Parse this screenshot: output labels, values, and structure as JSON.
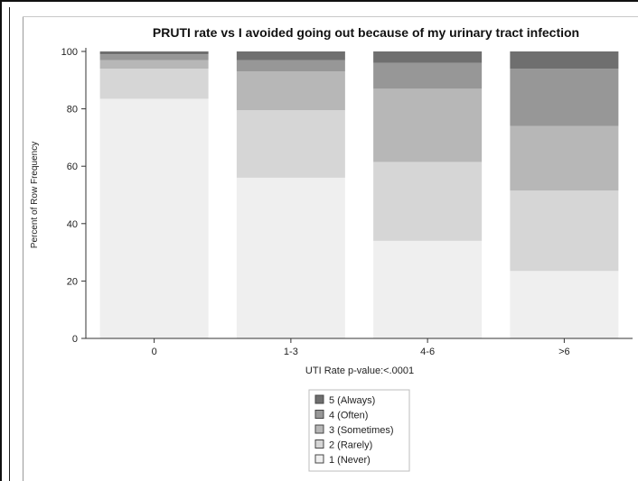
{
  "chart_data": {
    "type": "bar",
    "stacked": true,
    "title": "PRUTI rate vs I avoided going out because of my urinary tract infection",
    "xlabel": "UTI Rate p-value:<.0001",
    "ylabel": "Percent of Row Frequency",
    "ylim": [
      0,
      100
    ],
    "yticks": [
      0,
      20,
      40,
      60,
      80,
      100
    ],
    "categories": [
      "0",
      "1-3",
      "4-6",
      ">6"
    ],
    "series": [
      {
        "name": "1 (Never)",
        "color": "#efefef",
        "values": [
          83.5,
          56,
          34,
          23.5
        ]
      },
      {
        "name": "2 (Rarely)",
        "color": "#d6d6d6",
        "values": [
          10.5,
          23.5,
          27.5,
          28
        ]
      },
      {
        "name": "3 (Sometimes)",
        "color": "#b7b7b7",
        "values": [
          3,
          13.5,
          25.5,
          22.5
        ]
      },
      {
        "name": "4 (Often)",
        "color": "#979797",
        "values": [
          2,
          4,
          9,
          20
        ]
      },
      {
        "name": "5 (Always)",
        "color": "#6f6f6f",
        "values": [
          1,
          3,
          4,
          6
        ]
      }
    ],
    "legend_order": [
      "5 (Always)",
      "4 (Often)",
      "3 (Sometimes)",
      "2 (Rarely)",
      "1 (Never)"
    ],
    "legend_position": "bottom-center",
    "grid": false
  }
}
